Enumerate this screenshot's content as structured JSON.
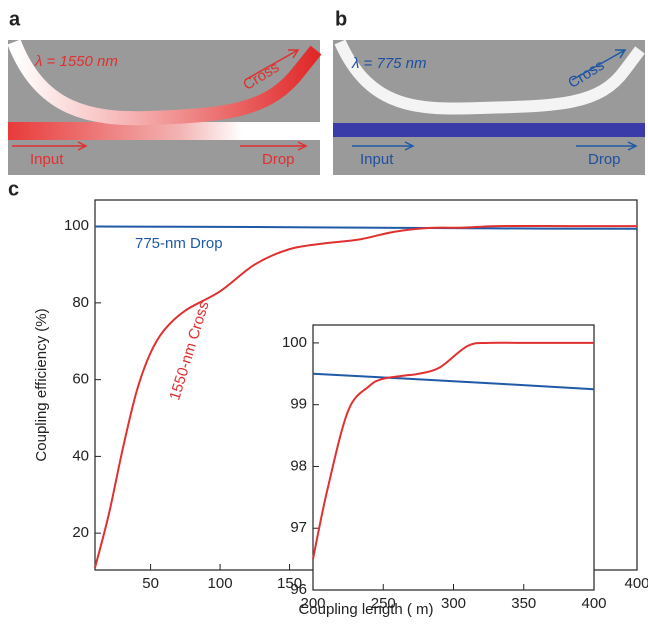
{
  "panels": [
    {
      "label": "a",
      "wavelength": "λ = 1550 nm",
      "cross": "Cross",
      "input": "Input",
      "drop": "Drop"
    },
    {
      "label": "b",
      "wavelength": "λ = 775 nm",
      "cross": "Cross",
      "input": "Input",
      "drop": "Drop"
    }
  ],
  "panel_label": "c",
  "chart_data": [
    {
      "type": "line",
      "xlabel": "Coupling length ( m)",
      "ylabel": "Coupling efficiency (%)",
      "xlim": [
        10,
        400
      ],
      "ylim": [
        10.4,
        106.8
      ],
      "xticks": [
        50,
        100,
        150,
        200,
        250,
        300,
        350,
        400
      ],
      "yticks": [
        20,
        40,
        60,
        80,
        100
      ],
      "series": [
        {
          "name": "775-nm Drop",
          "color": "#1f5aa6",
          "x": [
            10,
            100,
            200,
            300,
            400
          ],
          "values": [
            99.9,
            99.8,
            99.6,
            99.4,
            99.3
          ]
        },
        {
          "name": "1550-nm Cross",
          "color": "#e03030",
          "x": [
            10,
            20,
            30,
            40,
            50,
            60,
            75,
            100,
            125,
            150,
            175,
            200,
            225,
            250,
            275,
            300,
            350,
            400
          ],
          "values": [
            11,
            25,
            42,
            57,
            67,
            73,
            78,
            83,
            90,
            94,
            95.5,
            96.5,
            98.5,
            99.5,
            99.6,
            100,
            100,
            100
          ]
        }
      ]
    },
    {
      "type": "line",
      "xlim": [
        200,
        400
      ],
      "ylim": [
        96,
        100.29
      ],
      "xticks": [
        200,
        250,
        300,
        350,
        400
      ],
      "yticks": [
        96,
        97,
        98,
        99,
        100
      ],
      "series": [
        {
          "color": "#1f5aa6",
          "x": [
            200,
            300,
            400
          ],
          "values": [
            99.5,
            99.38,
            99.25
          ]
        },
        {
          "color": "#e03030",
          "x": [
            200,
            210,
            225,
            240,
            250,
            265,
            275,
            290,
            310,
            325,
            350,
            400
          ],
          "values": [
            96.5,
            97.6,
            98.9,
            99.3,
            99.42,
            99.47,
            99.5,
            99.6,
            99.95,
            100,
            100,
            100
          ]
        }
      ]
    }
  ]
}
